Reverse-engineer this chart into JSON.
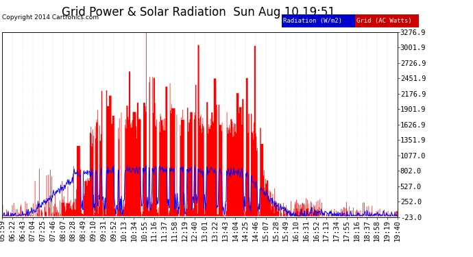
{
  "title": "Grid Power & Solar Radiation  Sun Aug 10 19:51",
  "copyright": "Copyright 2014 Cartronics.com",
  "legend_radiation": "Radiation (W/m2)",
  "legend_grid": "Grid (AC Watts)",
  "y_ticks": [
    3276.9,
    3001.9,
    2726.9,
    2451.9,
    2176.9,
    1901.9,
    1626.9,
    1351.9,
    1077.0,
    802.0,
    527.0,
    252.0,
    -23.0
  ],
  "ylim": [
    -23.0,
    3276.9
  ],
  "background_color": "#ffffff",
  "plot_bg_color": "#ffffff",
  "grid_color": "#aaaaaa",
  "red_fill_color": "#ff0000",
  "blue_line_color": "#0000ff",
  "title_fontsize": 12,
  "tick_fontsize": 7.5,
  "x_tick_labels": [
    "05:59",
    "06:22",
    "06:43",
    "07:04",
    "07:25",
    "07:46",
    "08:07",
    "08:28",
    "08:49",
    "09:10",
    "09:31",
    "09:52",
    "10:13",
    "10:34",
    "10:55",
    "11:16",
    "11:37",
    "11:58",
    "12:19",
    "12:40",
    "13:01",
    "13:22",
    "13:43",
    "14:04",
    "14:25",
    "14:46",
    "15:07",
    "15:28",
    "15:49",
    "16:10",
    "16:31",
    "16:52",
    "17:13",
    "17:34",
    "17:55",
    "18:16",
    "18:37",
    "18:58",
    "19:19",
    "19:40"
  ]
}
